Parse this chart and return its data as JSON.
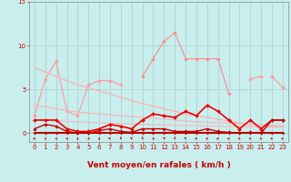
{
  "x": [
    0,
    1,
    2,
    3,
    4,
    5,
    6,
    7,
    8,
    9,
    10,
    11,
    12,
    13,
    14,
    15,
    16,
    17,
    18,
    19,
    20,
    21,
    22,
    23
  ],
  "series": [
    {
      "name": "pink_scatter_high",
      "color": "#FF9999",
      "linewidth": 0.8,
      "marker": "D",
      "markersize": 1.8,
      "values": [
        2.0,
        6.2,
        8.2,
        2.5,
        2.0,
        5.5,
        6.0,
        6.0,
        5.5,
        null,
        null,
        null,
        null,
        null,
        null,
        null,
        null,
        null,
        null,
        null,
        null,
        null,
        null,
        null
      ]
    },
    {
      "name": "pink_right_end",
      "color": "#FF9999",
      "linewidth": 0.8,
      "marker": "D",
      "markersize": 1.8,
      "values": [
        null,
        null,
        null,
        null,
        null,
        null,
        null,
        null,
        null,
        null,
        null,
        null,
        null,
        null,
        null,
        null,
        null,
        null,
        null,
        null,
        6.2,
        6.5,
        null,
        5.2
      ]
    },
    {
      "name": "pink_peak_line",
      "color": "#FF8888",
      "linewidth": 0.8,
      "marker": "D",
      "markersize": 1.8,
      "values": [
        null,
        null,
        null,
        null,
        null,
        null,
        null,
        null,
        null,
        null,
        6.5,
        8.5,
        10.5,
        11.5,
        8.5,
        8.5,
        8.5,
        8.5,
        4.5,
        null,
        null,
        null,
        null,
        null
      ]
    },
    {
      "name": "pink_lower_connected",
      "color": "#FF9999",
      "linewidth": 0.8,
      "marker": "D",
      "markersize": 1.8,
      "values": [
        2.0,
        null,
        null,
        null,
        null,
        null,
        null,
        null,
        null,
        null,
        null,
        null,
        null,
        null,
        null,
        null,
        null,
        null,
        null,
        null,
        null,
        null,
        6.5,
        5.2
      ]
    },
    {
      "name": "trend_high",
      "color": "#FFB0B0",
      "linewidth": 0.9,
      "marker": null,
      "markersize": 0,
      "values": [
        7.5,
        7.0,
        6.5,
        6.0,
        5.5,
        5.2,
        4.8,
        4.5,
        4.1,
        3.7,
        3.4,
        3.1,
        2.8,
        2.5,
        2.2,
        2.0,
        1.8,
        1.6,
        1.4,
        1.2,
        1.0,
        0.9,
        0.8,
        0.7
      ]
    },
    {
      "name": "trend_mid",
      "color": "#FFB0B0",
      "linewidth": 0.8,
      "marker": null,
      "markersize": 0,
      "values": [
        3.2,
        3.0,
        2.8,
        2.6,
        2.4,
        2.3,
        2.2,
        2.1,
        2.0,
        1.9,
        1.8,
        1.7,
        1.6,
        1.5,
        1.4,
        1.3,
        1.25,
        1.2,
        1.15,
        1.1,
        1.0,
        0.95,
        0.9,
        0.85
      ]
    },
    {
      "name": "trend_low",
      "color": "#FFB0B0",
      "linewidth": 0.7,
      "marker": null,
      "markersize": 0,
      "values": [
        1.5,
        1.45,
        1.4,
        1.35,
        1.3,
        1.25,
        1.2,
        1.15,
        1.1,
        1.05,
        1.0,
        0.97,
        0.94,
        0.91,
        0.88,
        0.85,
        0.82,
        0.8,
        0.78,
        0.76,
        0.74,
        0.72,
        0.7,
        0.68
      ]
    },
    {
      "name": "red_main",
      "color": "#EE0000",
      "linewidth": 1.2,
      "marker": "D",
      "markersize": 2.0,
      "values": [
        1.5,
        1.5,
        1.5,
        0.5,
        0.2,
        0.2,
        0.5,
        1.0,
        0.8,
        0.5,
        1.5,
        2.2,
        2.0,
        1.8,
        2.5,
        2.0,
        3.2,
        2.5,
        1.5,
        0.5,
        1.5,
        0.5,
        1.5,
        1.5
      ]
    },
    {
      "name": "red_lower",
      "color": "#CC0000",
      "linewidth": 1.0,
      "marker": "D",
      "markersize": 1.8,
      "values": [
        0.5,
        1.0,
        0.8,
        0.2,
        0.0,
        0.0,
        0.3,
        0.5,
        0.2,
        0.1,
        0.5,
        0.5,
        0.5,
        0.2,
        0.2,
        0.2,
        0.5,
        0.2,
        0.1,
        0.0,
        0.1,
        0.0,
        1.5,
        1.5
      ]
    },
    {
      "name": "dark_red",
      "color": "#BB0000",
      "linewidth": 1.5,
      "marker": "D",
      "markersize": 1.5,
      "values": [
        0.0,
        0.0,
        0.0,
        0.0,
        0.0,
        0.0,
        0.0,
        0.0,
        0.0,
        0.0,
        0.0,
        0.0,
        0.0,
        0.0,
        0.0,
        0.0,
        0.0,
        0.0,
        0.0,
        0.0,
        0.0,
        0.0,
        0.0,
        0.0
      ]
    }
  ],
  "xlim": [
    -0.5,
    23.5
  ],
  "ylim": [
    -1.0,
    15
  ],
  "yticks": [
    0,
    5,
    10,
    15
  ],
  "xticks": [
    0,
    1,
    2,
    3,
    4,
    5,
    6,
    7,
    8,
    9,
    10,
    11,
    12,
    13,
    14,
    15,
    16,
    17,
    18,
    19,
    20,
    21,
    22,
    23
  ],
  "xlabel": "Vent moyen/en rafales ( km/h )",
  "xlabel_color": "#CC0000",
  "xlabel_fontsize": 6.5,
  "tick_color": "#CC0000",
  "tick_fontsize": 5.0,
  "background_color": "#C8EEEE",
  "grid_color": "#AACCCC"
}
